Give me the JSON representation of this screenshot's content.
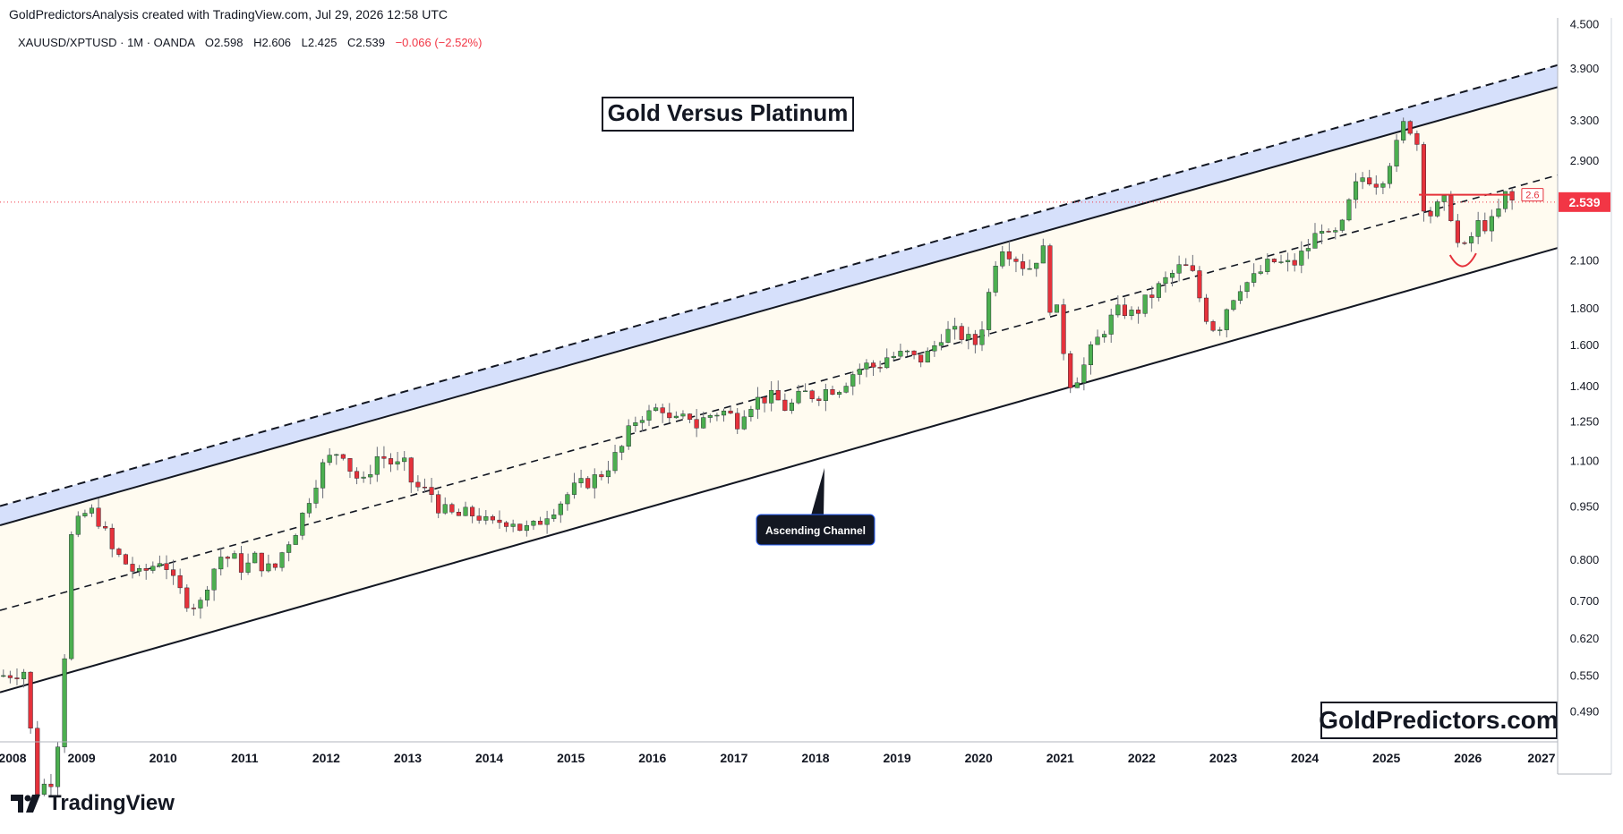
{
  "credit_line": "GoldPredictorsAnalysis created with TradingView.com, Jul 29, 2026 12:58 UTC",
  "symbol_line": {
    "symbol": "XAUUSD/XPTUSD · 1M · OANDA",
    "open": "O2.598",
    "high": "H2.606",
    "low": "L2.425",
    "close": "C2.539",
    "change": "−0.066 (−2.52%)"
  },
  "branding": {
    "text": "TradingView"
  },
  "colors": {
    "up": "#4caf50",
    "down": "#e5323b",
    "channel_fill": "#fffbf0",
    "band_fill": "#d6e0fb",
    "price_label_bg": "#f23645",
    "line": "#131722"
  },
  "chart_data": {
    "type": "candlestick",
    "title": "Gold Versus Platinum",
    "watermark": "GoldPredictors.com",
    "x_axis": {
      "range": [
        2008.0,
        2027.1
      ],
      "ticks": [
        "2008",
        "2009",
        "2010",
        "2011",
        "2012",
        "2013",
        "2014",
        "2015",
        "2016",
        "2017",
        "2018",
        "2019",
        "2020",
        "2021",
        "2022",
        "2023",
        "2024",
        "2025",
        "2026",
        "2027"
      ]
    },
    "y_axis": {
      "scale": "log",
      "range": [
        0.445,
        4.6
      ],
      "ticks": [
        "0.490",
        "0.550",
        "0.620",
        "0.700",
        "0.800",
        "0.950",
        "1.100",
        "1.250",
        "1.400",
        "1.600",
        "1.800",
        "2.100",
        "2.500",
        "2.900",
        "3.300",
        "3.900",
        "4.500"
      ]
    },
    "last_price": {
      "label": "2.539",
      "value": 2.539
    },
    "channel": {
      "label": "Ascending Channel",
      "upper_solid": [
        [
          2008.0,
          0.895
        ],
        [
          2027.1,
          3.68
        ]
      ],
      "upper_dashed": [
        [
          2008.0,
          0.952
        ],
        [
          2027.1,
          3.95
        ]
      ],
      "middle_dashed": [
        [
          2008.0,
          0.68
        ],
        [
          2027.1,
          2.77
        ]
      ],
      "lower_solid": [
        [
          2008.0,
          0.522
        ],
        [
          2027.1,
          2.19
        ]
      ]
    },
    "resistance": {
      "label": "2.6",
      "value": 2.6,
      "from": 2025.4,
      "to": 2026.55
    },
    "anchors": [
      [
        2008.0,
        0.55
      ],
      [
        2008.3,
        0.56
      ],
      [
        2008.45,
        0.38
      ],
      [
        2008.7,
        0.4
      ],
      [
        2008.72,
        0.52
      ],
      [
        2008.8,
        0.6
      ],
      [
        2008.85,
        0.85
      ],
      [
        2009.0,
        0.92
      ],
      [
        2009.1,
        0.94
      ],
      [
        2009.25,
        0.9
      ],
      [
        2009.35,
        0.83
      ],
      [
        2009.5,
        0.8
      ],
      [
        2009.7,
        0.76
      ],
      [
        2009.9,
        0.79
      ],
      [
        2010.0,
        0.81
      ],
      [
        2010.1,
        0.75
      ],
      [
        2010.3,
        0.7
      ],
      [
        2010.45,
        0.69
      ],
      [
        2010.55,
        0.75
      ],
      [
        2010.7,
        0.81
      ],
      [
        2010.9,
        0.8
      ],
      [
        2011.0,
        0.77
      ],
      [
        2011.1,
        0.81
      ],
      [
        2011.2,
        0.79
      ],
      [
        2011.35,
        0.77
      ],
      [
        2011.5,
        0.84
      ],
      [
        2011.6,
        0.87
      ],
      [
        2011.7,
        0.92
      ],
      [
        2011.85,
        1.02
      ],
      [
        2011.95,
        1.08
      ],
      [
        2012.1,
        1.13
      ],
      [
        2012.2,
        1.14
      ],
      [
        2012.3,
        1.07
      ],
      [
        2012.45,
        1.02
      ],
      [
        2012.55,
        1.08
      ],
      [
        2012.65,
        1.13
      ],
      [
        2012.75,
        1.1
      ],
      [
        2012.9,
        1.08
      ],
      [
        2013.0,
        1.09
      ],
      [
        2013.05,
        1.02
      ],
      [
        2013.2,
        1.0
      ],
      [
        2013.3,
        0.99
      ],
      [
        2013.4,
        0.94
      ],
      [
        2013.5,
        0.93
      ],
      [
        2013.6,
        0.92
      ],
      [
        2013.75,
        0.93
      ],
      [
        2013.9,
        0.92
      ],
      [
        2014.0,
        0.89
      ],
      [
        2014.15,
        0.91
      ],
      [
        2014.3,
        0.91
      ],
      [
        2014.4,
        0.88
      ],
      [
        2014.55,
        0.89
      ],
      [
        2014.7,
        0.93
      ],
      [
        2014.85,
        0.96
      ],
      [
        2015.0,
        1.0
      ],
      [
        2015.2,
        1.03
      ],
      [
        2015.35,
        1.05
      ],
      [
        2015.5,
        1.1
      ],
      [
        2015.65,
        1.16
      ],
      [
        2015.75,
        1.24
      ],
      [
        2015.85,
        1.28
      ],
      [
        2016.0,
        1.28
      ],
      [
        2016.1,
        1.33
      ],
      [
        2016.2,
        1.25
      ],
      [
        2016.35,
        1.25
      ],
      [
        2016.45,
        1.28
      ],
      [
        2016.55,
        1.23
      ],
      [
        2016.65,
        1.27
      ],
      [
        2016.8,
        1.29
      ],
      [
        2016.9,
        1.29
      ],
      [
        2017.05,
        1.25
      ],
      [
        2017.15,
        1.32
      ],
      [
        2017.35,
        1.35
      ],
      [
        2017.5,
        1.35
      ],
      [
        2017.65,
        1.3
      ],
      [
        2017.85,
        1.37
      ],
      [
        2018.0,
        1.36
      ],
      [
        2018.15,
        1.39
      ],
      [
        2018.3,
        1.4
      ],
      [
        2018.45,
        1.46
      ],
      [
        2018.6,
        1.5
      ],
      [
        2018.75,
        1.49
      ],
      [
        2018.9,
        1.55
      ],
      [
        2019.0,
        1.54
      ],
      [
        2019.1,
        1.56
      ],
      [
        2019.25,
        1.52
      ],
      [
        2019.4,
        1.56
      ],
      [
        2019.55,
        1.66
      ],
      [
        2019.65,
        1.67
      ],
      [
        2019.8,
        1.65
      ],
      [
        2019.95,
        1.6
      ],
      [
        2020.05,
        1.72
      ],
      [
        2020.15,
        1.95
      ],
      [
        2020.25,
        2.23
      ],
      [
        2020.35,
        2.18
      ],
      [
        2020.5,
        2.1
      ],
      [
        2020.6,
        2.04
      ],
      [
        2020.7,
        2.12
      ],
      [
        2020.8,
        2.17
      ],
      [
        2020.85,
        1.83
      ],
      [
        2020.95,
        1.8
      ],
      [
        2021.05,
        1.56
      ],
      [
        2021.12,
        1.42
      ],
      [
        2021.25,
        1.46
      ],
      [
        2021.35,
        1.55
      ],
      [
        2021.5,
        1.66
      ],
      [
        2021.6,
        1.73
      ],
      [
        2021.75,
        1.8
      ],
      [
        2021.9,
        1.76
      ],
      [
        2022.0,
        1.82
      ],
      [
        2022.1,
        1.87
      ],
      [
        2022.25,
        1.95
      ],
      [
        2022.35,
        2.0
      ],
      [
        2022.45,
        2.05
      ],
      [
        2022.6,
        2.05
      ],
      [
        2022.75,
        1.8
      ],
      [
        2022.85,
        1.7
      ],
      [
        2022.95,
        1.7
      ],
      [
        2023.05,
        1.82
      ],
      [
        2023.2,
        1.94
      ],
      [
        2023.35,
        1.97
      ],
      [
        2023.5,
        2.05
      ],
      [
        2023.6,
        2.1
      ],
      [
        2023.7,
        2.08
      ],
      [
        2023.85,
        2.07
      ],
      [
        2024.0,
        2.17
      ],
      [
        2024.1,
        2.24
      ],
      [
        2024.2,
        2.37
      ],
      [
        2024.3,
        2.24
      ],
      [
        2024.45,
        2.33
      ],
      [
        2024.55,
        2.54
      ],
      [
        2024.65,
        2.71
      ],
      [
        2024.75,
        2.78
      ],
      [
        2024.85,
        2.7
      ],
      [
        2024.95,
        2.75
      ],
      [
        2025.05,
        2.92
      ],
      [
        2025.15,
        3.08
      ],
      [
        2025.25,
        3.38
      ],
      [
        2025.3,
        3.2
      ],
      [
        2025.42,
        3.0
      ],
      [
        2025.47,
        2.4
      ],
      [
        2025.55,
        2.45
      ],
      [
        2025.65,
        2.51
      ],
      [
        2025.75,
        2.55
      ],
      [
        2025.85,
        2.3
      ],
      [
        2025.9,
        2.14
      ],
      [
        2025.95,
        2.17
      ],
      [
        2026.05,
        2.28
      ],
      [
        2026.15,
        2.39
      ],
      [
        2026.25,
        2.34
      ],
      [
        2026.35,
        2.42
      ],
      [
        2026.45,
        2.6
      ],
      [
        2026.55,
        2.539
      ]
    ]
  }
}
